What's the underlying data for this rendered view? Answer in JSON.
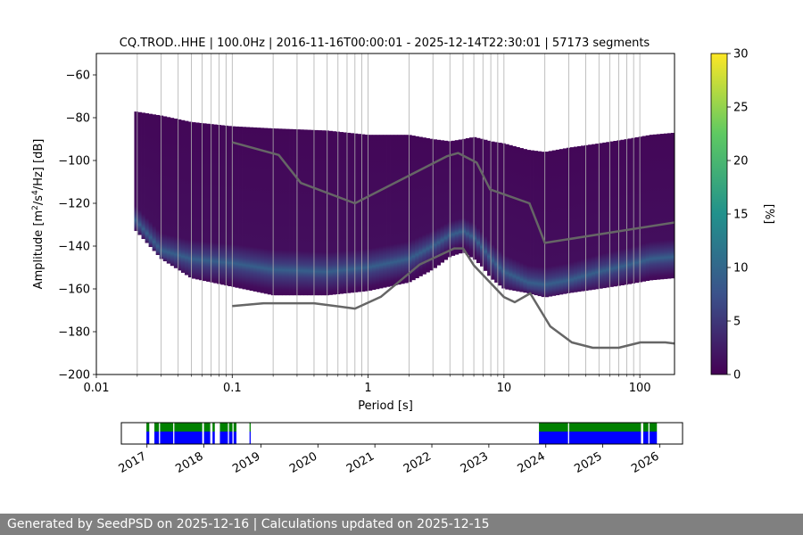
{
  "chart_data": [
    {
      "type": "heatmap",
      "title": "CQ.TROD..HHE | 100.0Hz | 2016-11-16T00:00:01 - 2025-12-14T22:30:01 | 57173 segments",
      "xlabel": "Period [s]",
      "ylabel_main": "Amplitude [m",
      "ylabel_sup1": "2",
      "ylabel_mid": "/s",
      "ylabel_sup2": "4",
      "ylabel_end": "/Hz] [dB]",
      "x_scale": "log",
      "xlim": [
        0.01,
        180
      ],
      "ylim": [
        -200,
        -50
      ],
      "x_ticks": [
        {
          "value": 0.01,
          "label": "0.01"
        },
        {
          "value": 0.1,
          "label": "0.1"
        },
        {
          "value": 1,
          "label": "1"
        },
        {
          "value": 10,
          "label": "10"
        },
        {
          "value": 100,
          "label": "100"
        }
      ],
      "y_ticks": [
        {
          "value": -60,
          "label": "−60"
        },
        {
          "value": -80,
          "label": "−80"
        },
        {
          "value": -100,
          "label": "−100"
        },
        {
          "value": -120,
          "label": "−120"
        },
        {
          "value": -140,
          "label": "−140"
        },
        {
          "value": -160,
          "label": "−160"
        },
        {
          "value": -180,
          "label": "−180"
        },
        {
          "value": -200,
          "label": "−200"
        }
      ],
      "grid": "vertical",
      "colorbar": {
        "label": "[%]",
        "range": [
          0,
          30
        ],
        "ticks": [
          {
            "value": 0,
            "label": "0"
          },
          {
            "value": 5,
            "label": "5"
          },
          {
            "value": 10,
            "label": "10"
          },
          {
            "value": 15,
            "label": "15"
          },
          {
            "value": 20,
            "label": "20"
          },
          {
            "value": 25,
            "label": "25"
          },
          {
            "value": 30,
            "label": "30"
          }
        ],
        "colormap": [
          "#440154",
          "#3b528b",
          "#21918c",
          "#5ec962",
          "#fde725"
        ]
      },
      "psd_envelope": {
        "period": [
          0.019,
          0.03,
          0.05,
          0.1,
          0.2,
          0.5,
          1,
          2,
          3,
          4,
          5,
          6,
          7,
          8,
          10,
          15,
          20,
          30,
          50,
          80,
          120,
          180
        ],
        "lower": [
          -132,
          -146,
          -155,
          -159,
          -163,
          -163,
          -161,
          -157,
          -151,
          -145,
          -143,
          -146,
          -150,
          -155,
          -160,
          -162,
          -164,
          -162,
          -160,
          -158,
          -156,
          -155
        ],
        "upper": [
          -77,
          -79,
          -82,
          -84,
          -85,
          -86,
          -88,
          -88,
          -90,
          -91,
          -90,
          -89,
          -90,
          -91,
          -92,
          -95,
          -96,
          -94,
          -92,
          -90,
          -88,
          -87
        ],
        "mode": [
          -127,
          -142,
          -146,
          -148,
          -151,
          -152,
          -150,
          -146,
          -140,
          -135,
          -133,
          -136,
          -141,
          -146,
          -152,
          -157,
          -158,
          -156,
          -152,
          -149,
          -146,
          -145
        ]
      },
      "noise_models": {
        "line_color": "#666666",
        "high": {
          "period": [
            0.1,
            0.22,
            0.32,
            0.8,
            3.8,
            4.6,
            6.3,
            7.9,
            15.4,
            20,
            354.8
          ],
          "db": [
            -91.5,
            -97.4,
            -110.5,
            -120,
            -98,
            -96.5,
            -101,
            -113.5,
            -120,
            -138.5,
            -126
          ]
        },
        "low": {
          "period": [
            0.1,
            0.17,
            0.4,
            0.8,
            1.24,
            2.4,
            4.3,
            5,
            6,
            10,
            12,
            15.6,
            21.9,
            31.6,
            45,
            70,
            101,
            154,
            328
          ],
          "db": [
            -168,
            -166.7,
            -166.7,
            -169.2,
            -163.7,
            -148.6,
            -141.1,
            -141.1,
            -149,
            -163.8,
            -166.2,
            -162.1,
            -177.5,
            -185,
            -187.5,
            -187.5,
            -185,
            -185,
            -187.5
          ]
        }
      }
    },
    {
      "type": "timeline",
      "years": [
        "2017",
        "2018",
        "2019",
        "2020",
        "2021",
        "2022",
        "2023",
        "2024",
        "2025",
        "2026"
      ],
      "range_years": [
        2016.55,
        2026.4
      ],
      "colors": {
        "top": "#008000",
        "bottom": "#0000ff"
      },
      "coverage": [
        {
          "start": 2016.99,
          "end": 2017.04
        },
        {
          "start": 2017.13,
          "end": 2017.21
        },
        {
          "start": 2017.23,
          "end": 2017.46
        },
        {
          "start": 2017.48,
          "end": 2017.97
        },
        {
          "start": 2018.0,
          "end": 2018.11
        },
        {
          "start": 2018.15,
          "end": 2018.19
        },
        {
          "start": 2018.28,
          "end": 2018.42
        },
        {
          "start": 2018.44,
          "end": 2018.5
        },
        {
          "start": 2018.52,
          "end": 2018.57
        },
        {
          "start": 2018.8,
          "end": 2018.82
        },
        {
          "start": 2023.88,
          "end": 2024.39
        },
        {
          "start": 2024.41,
          "end": 2025.67
        },
        {
          "start": 2025.71,
          "end": 2025.8
        },
        {
          "start": 2025.82,
          "end": 2025.95
        }
      ]
    }
  ],
  "footer": {
    "text": "Generated by SeedPSD on 2025-12-16 | Calculations updated on 2025-12-15"
  }
}
